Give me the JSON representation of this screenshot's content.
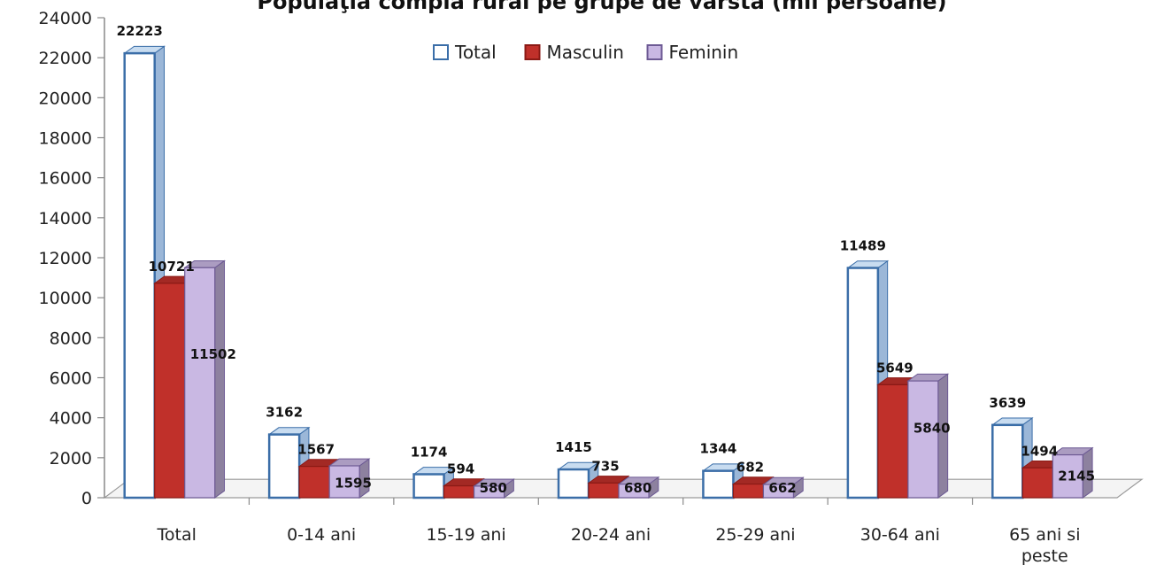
{
  "chart_data": {
    "type": "bar",
    "title": "Populaţia complă rural pe grupe de vârstă (mii persoane)",
    "categories": [
      "Total",
      "0-14  ani",
      "15-19 ani",
      "20-24 ani",
      "25-29 ani",
      "30-64 ani",
      "65 ani si peste"
    ],
    "series": [
      {
        "name": "Total",
        "values": [
          22223,
          3162,
          1174,
          1415,
          1344,
          11489,
          3639
        ]
      },
      {
        "name": "Masculin",
        "values": [
          10721,
          1567,
          594,
          735,
          682,
          5649,
          1494
        ]
      },
      {
        "name": "Feminin",
        "values": [
          11502,
          1595,
          580,
          680,
          662,
          5840,
          2145
        ]
      }
    ],
    "ylim": [
      0,
      24000
    ],
    "yticks": [
      0,
      2000,
      4000,
      6000,
      8000,
      10000,
      12000,
      14000,
      16000,
      18000,
      20000,
      22000,
      24000
    ],
    "xlabel": "",
    "ylabel": "",
    "legend": "top-center",
    "grid": false,
    "colors": {
      "Total": "#ffffff",
      "Total_edge": "#3b6ea8",
      "Masculin": "#c0302a",
      "Masculin_edge": "#8b1a15",
      "Feminin": "#c9b8e3",
      "Feminin_edge": "#6d5a94"
    }
  }
}
